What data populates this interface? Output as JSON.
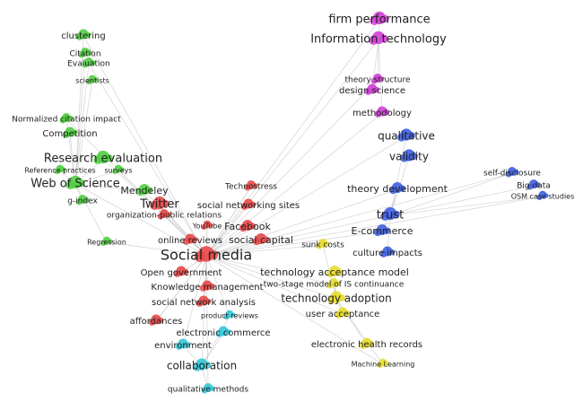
{
  "clusters": [
    {
      "color": "#d23fd6",
      "nodes": [
        {
          "label": "firm performance"
        },
        {
          "label": "Information technology"
        },
        {
          "label": "theory structure"
        },
        {
          "label": "design science"
        },
        {
          "label": "methodology"
        }
      ]
    },
    {
      "color": "#3e5ee0",
      "nodes": [
        {
          "label": "qualitative"
        },
        {
          "label": "validity"
        },
        {
          "label": "theory development"
        },
        {
          "label": "trust"
        },
        {
          "label": "E-commerce"
        },
        {
          "label": "culture impacts"
        },
        {
          "label": "self-disclosure"
        },
        {
          "label": "Big data"
        },
        {
          "label": "OSM case studies"
        }
      ]
    },
    {
      "color": "#4fcf3f",
      "nodes": [
        {
          "label": "clustering"
        },
        {
          "label": "Citation"
        },
        {
          "label": "Evaluation"
        },
        {
          "label": "scientists"
        },
        {
          "label": "Normalized citation impact"
        },
        {
          "label": "Competition"
        },
        {
          "label": "Research evaluation"
        },
        {
          "label": "Reference practices"
        },
        {
          "label": "surveys"
        },
        {
          "label": "Web of Science"
        },
        {
          "label": "Mendeley"
        },
        {
          "label": "g-index"
        },
        {
          "label": "Regression"
        }
      ]
    },
    {
      "color": "#e84848",
      "nodes": [
        {
          "label": "Technostress"
        },
        {
          "label": "social networking sites"
        },
        {
          "label": "Twitter"
        },
        {
          "label": "organization-public relations"
        },
        {
          "label": "YouTube"
        },
        {
          "label": "Facebook"
        },
        {
          "label": "online reviews"
        },
        {
          "label": "social capital"
        },
        {
          "label": "Social media"
        },
        {
          "label": "Open government"
        },
        {
          "label": "Knowledge management"
        },
        {
          "label": "social network analysis"
        },
        {
          "label": "affordances"
        }
      ]
    },
    {
      "color": "#e6dc2c",
      "nodes": [
        {
          "label": "sunk costs"
        },
        {
          "label": "technology acceptance model"
        },
        {
          "label": "two-stage model of IS continuance"
        },
        {
          "label": "technology adoption"
        },
        {
          "label": "user acceptance"
        },
        {
          "label": "electronic health records"
        },
        {
          "label": "Machine Learning"
        }
      ]
    },
    {
      "color": "#33c6d6",
      "nodes": [
        {
          "label": "product reviews"
        },
        {
          "label": "electronic commerce"
        },
        {
          "label": "environment"
        },
        {
          "label": "collaboration"
        },
        {
          "label": "qualitative methods"
        }
      ]
    }
  ]
}
